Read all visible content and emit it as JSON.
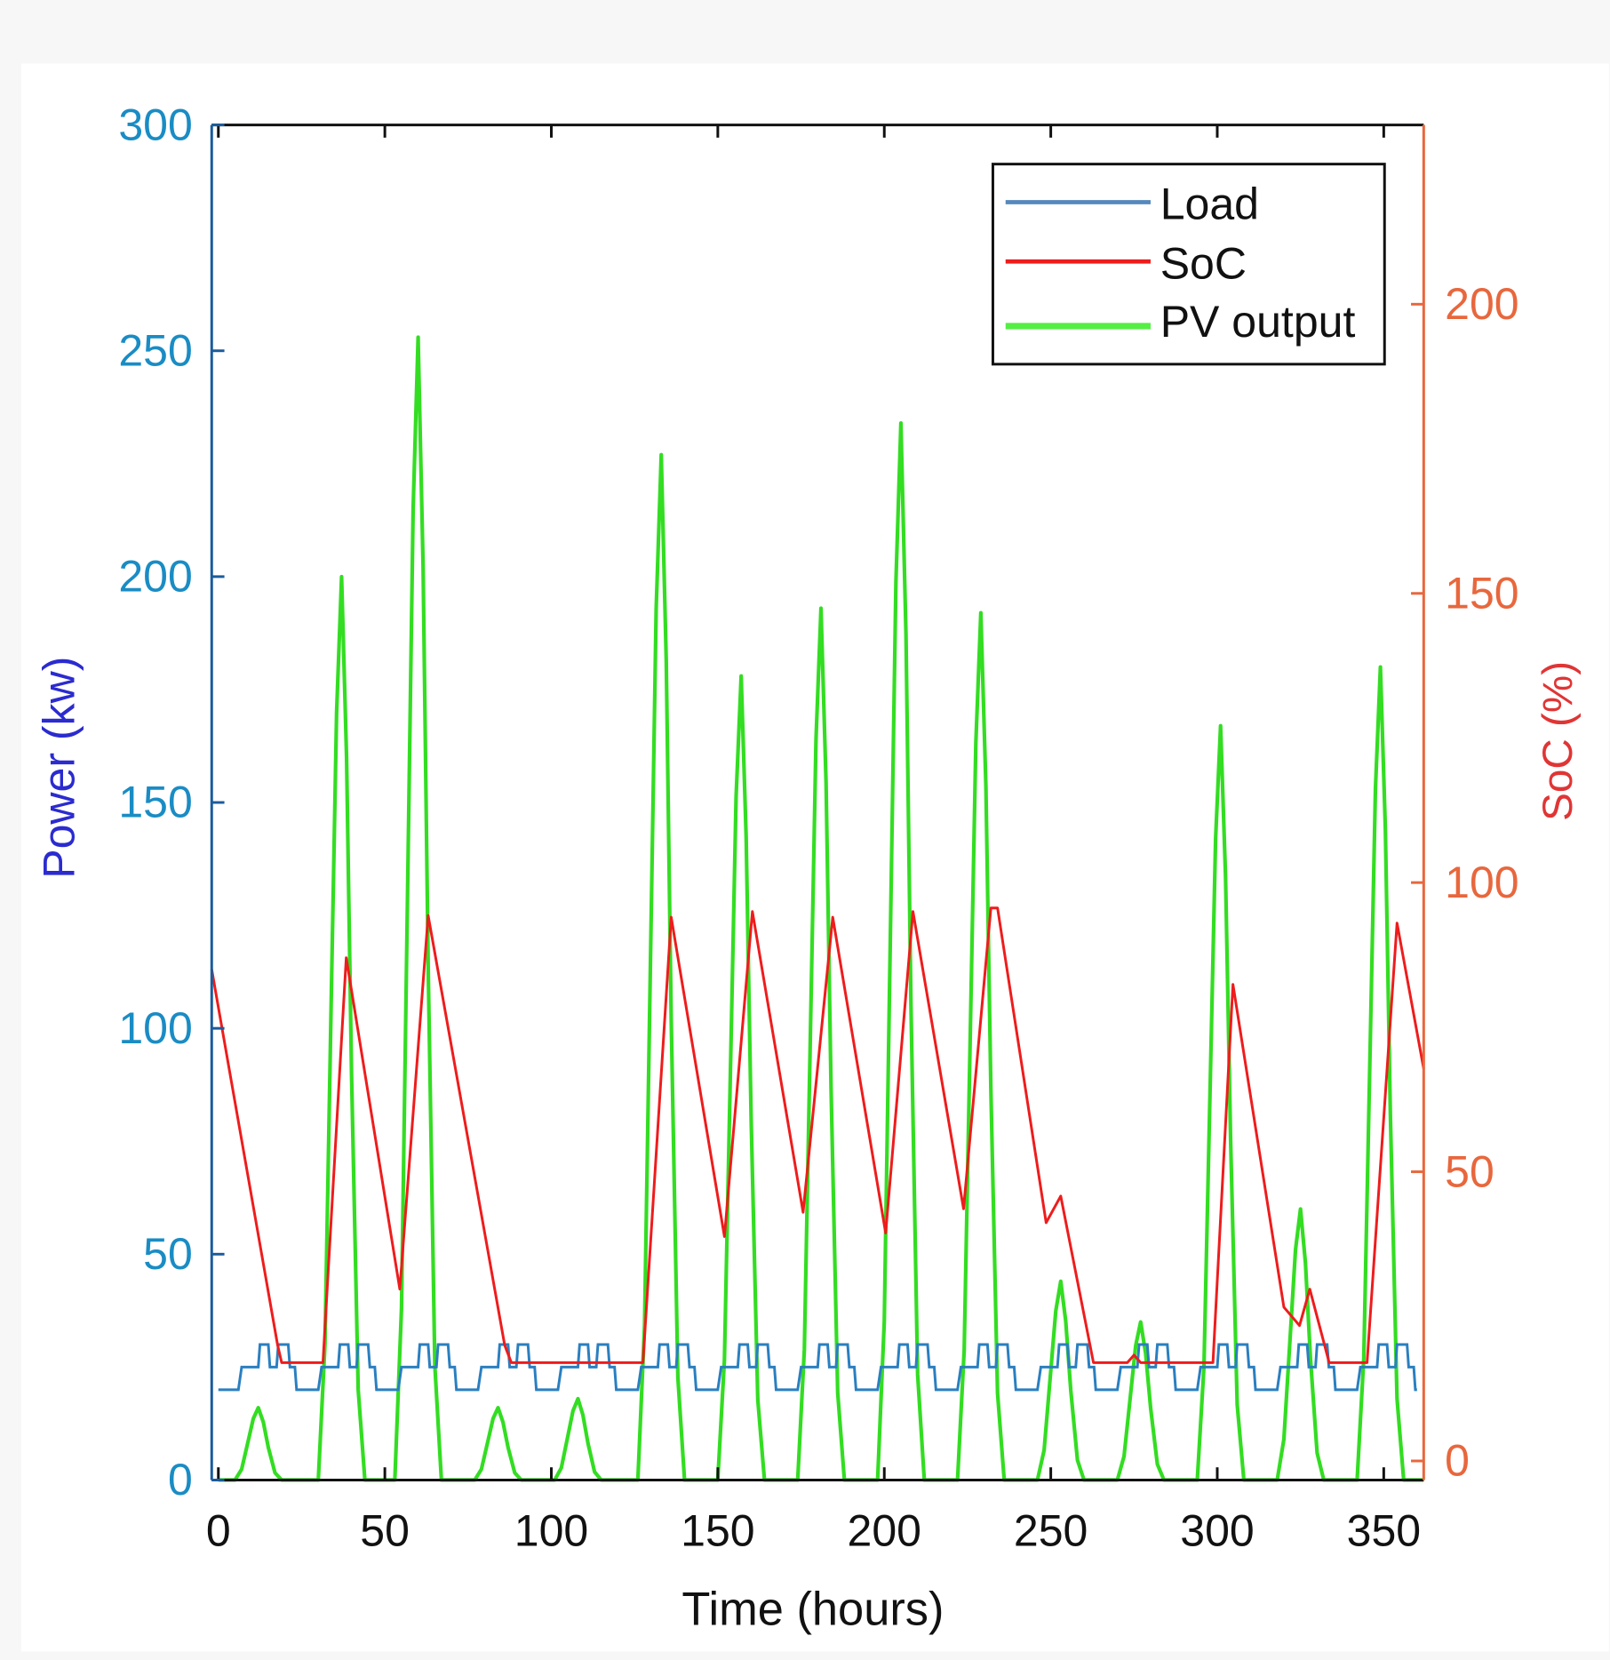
{
  "chart_data": {
    "type": "line",
    "xlabel": "Time (hours)",
    "ylabel_left": "Power (kw)",
    "ylabel_right": "SoC (%)",
    "xlim": [
      -2,
      362
    ],
    "ylim_left": [
      0,
      300
    ],
    "ylim_right": [
      -3.3,
      231
    ],
    "x_ticks": [
      0,
      50,
      100,
      150,
      200,
      250,
      300,
      350
    ],
    "y_ticks_left": [
      0,
      50,
      100,
      150,
      200,
      250,
      300
    ],
    "y_ticks_right": [
      0,
      50,
      100,
      150,
      200
    ],
    "legend_position": "top-right",
    "legend": [
      "Load",
      "SoC",
      "PV output"
    ],
    "colors": {
      "load": "#2a7fc0",
      "soc": "#ee1c1c",
      "pv": "#33dd22",
      "left_axis": "#1a8cc4",
      "left_label": "#2b2bd0",
      "right_axis": "#e8673d",
      "right_label": "#e03535"
    },
    "series": [
      {
        "name": "Load",
        "axis": "left",
        "daily_profile_hours": [
          0,
          6,
          7,
          12,
          12.5,
          15,
          15.5,
          17.5,
          18,
          21,
          21.5,
          23,
          23.5,
          24
        ],
        "daily_profile_kw": [
          20,
          20,
          25,
          25,
          30,
          30,
          25,
          25,
          30,
          30,
          25,
          25,
          20,
          20
        ],
        "days": 15
      },
      {
        "name": "SoC",
        "axis": "right",
        "x": [
          -2,
          17.8,
          19,
          31.4,
          38.4,
          54.5,
          63,
          86,
          88,
          127.5,
          136,
          152,
          160.4,
          175.6,
          184.5,
          200.4,
          208.6,
          223.8,
          232,
          234,
          248.6,
          253,
          262.8,
          273,
          275,
          277,
          298.7,
          304.7,
          320,
          324.7,
          327.8,
          333.6,
          345,
          354,
          362
        ],
        "y": [
          85,
          20,
          17,
          17,
          87,
          29.7,
          94.3,
          20,
          17,
          17,
          94,
          38.8,
          95,
          43,
          94,
          39.4,
          95,
          43.6,
          95.6,
          95.6,
          41.2,
          45.8,
          17,
          17,
          18.3,
          17,
          17,
          82.4,
          26.6,
          23.4,
          29.7,
          17,
          17,
          93,
          67.8
        ]
      },
      {
        "name": "PV output",
        "axis": "left",
        "peak_hours": [
          12,
          37,
          60,
          84,
          108,
          133,
          157,
          181,
          205,
          229,
          253,
          277,
          301,
          325,
          349
        ],
        "peak_kw": [
          16,
          200,
          253,
          16,
          18,
          227,
          178,
          193,
          234,
          192,
          44,
          35,
          167,
          60,
          180
        ]
      }
    ]
  }
}
